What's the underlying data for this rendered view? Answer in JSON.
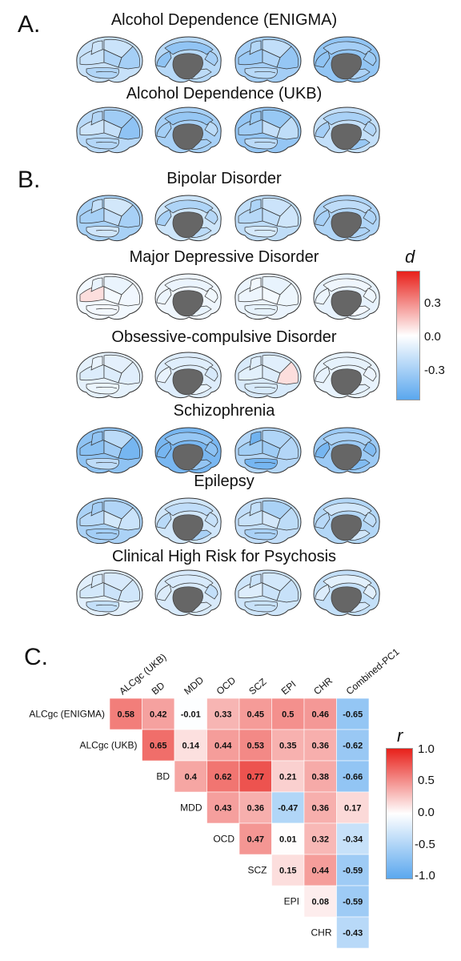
{
  "panel_a": {
    "label": "A.",
    "rows": [
      {
        "title": "Alcohol Dependence (ENIGMA)",
        "intensity": 0.55
      },
      {
        "title": "Alcohol Dependence (UKB)",
        "intensity": 0.55
      }
    ]
  },
  "panel_b": {
    "label": "B.",
    "rows": [
      {
        "title": "Bipolar Disorder",
        "intensity": 0.45
      },
      {
        "title": "Major Depressive Disorder",
        "intensity": 0.12
      },
      {
        "title": "Obsessive-compulsive Disorder",
        "intensity": 0.2
      },
      {
        "title": "Schizophrenia",
        "intensity": 0.7
      },
      {
        "title": "Epilepsy",
        "intensity": 0.45
      },
      {
        "title": "Clinical High Risk for Psychosis",
        "intensity": 0.3
      }
    ],
    "legend": {
      "title": "d",
      "ticks": [
        "0.3",
        "0.0",
        "-0.3"
      ],
      "colors": {
        "high": "#e8201a",
        "mid": "#ffffff",
        "low": "#5aa7ee"
      }
    }
  },
  "panel_c": {
    "label": "C.",
    "legend": {
      "title": "r",
      "ticks": [
        "1.0",
        "0.5",
        "0.0",
        "-0.5",
        "-1.0"
      ]
    }
  },
  "chart_data": {
    "type": "heatmap",
    "column_labels": [
      "ALCgc (UKB)",
      "BD",
      "MDD",
      "OCD",
      "SCZ",
      "EPI",
      "CHR",
      "Combined-PC1"
    ],
    "row_labels": [
      "ALCgc (ENIGMA)",
      "ALCgc (UKB)",
      "BD",
      "MDD",
      "OCD",
      "SCZ",
      "EPI",
      "CHR"
    ],
    "values": [
      [
        0.58,
        0.42,
        -0.01,
        0.33,
        0.45,
        0.5,
        0.46,
        -0.65
      ],
      [
        null,
        0.65,
        0.14,
        0.44,
        0.53,
        0.35,
        0.36,
        -0.62
      ],
      [
        null,
        null,
        0.4,
        0.62,
        0.77,
        0.21,
        0.38,
        -0.66
      ],
      [
        null,
        null,
        null,
        0.43,
        0.36,
        -0.47,
        0.36,
        0.17
      ],
      [
        null,
        null,
        null,
        null,
        0.47,
        0.01,
        0.32,
        -0.34
      ],
      [
        null,
        null,
        null,
        null,
        null,
        0.15,
        0.44,
        -0.59
      ],
      [
        null,
        null,
        null,
        null,
        null,
        null,
        0.08,
        -0.59
      ],
      [
        null,
        null,
        null,
        null,
        null,
        null,
        null,
        -0.43
      ]
    ],
    "color_range": [
      -1.0,
      1.0
    ]
  }
}
